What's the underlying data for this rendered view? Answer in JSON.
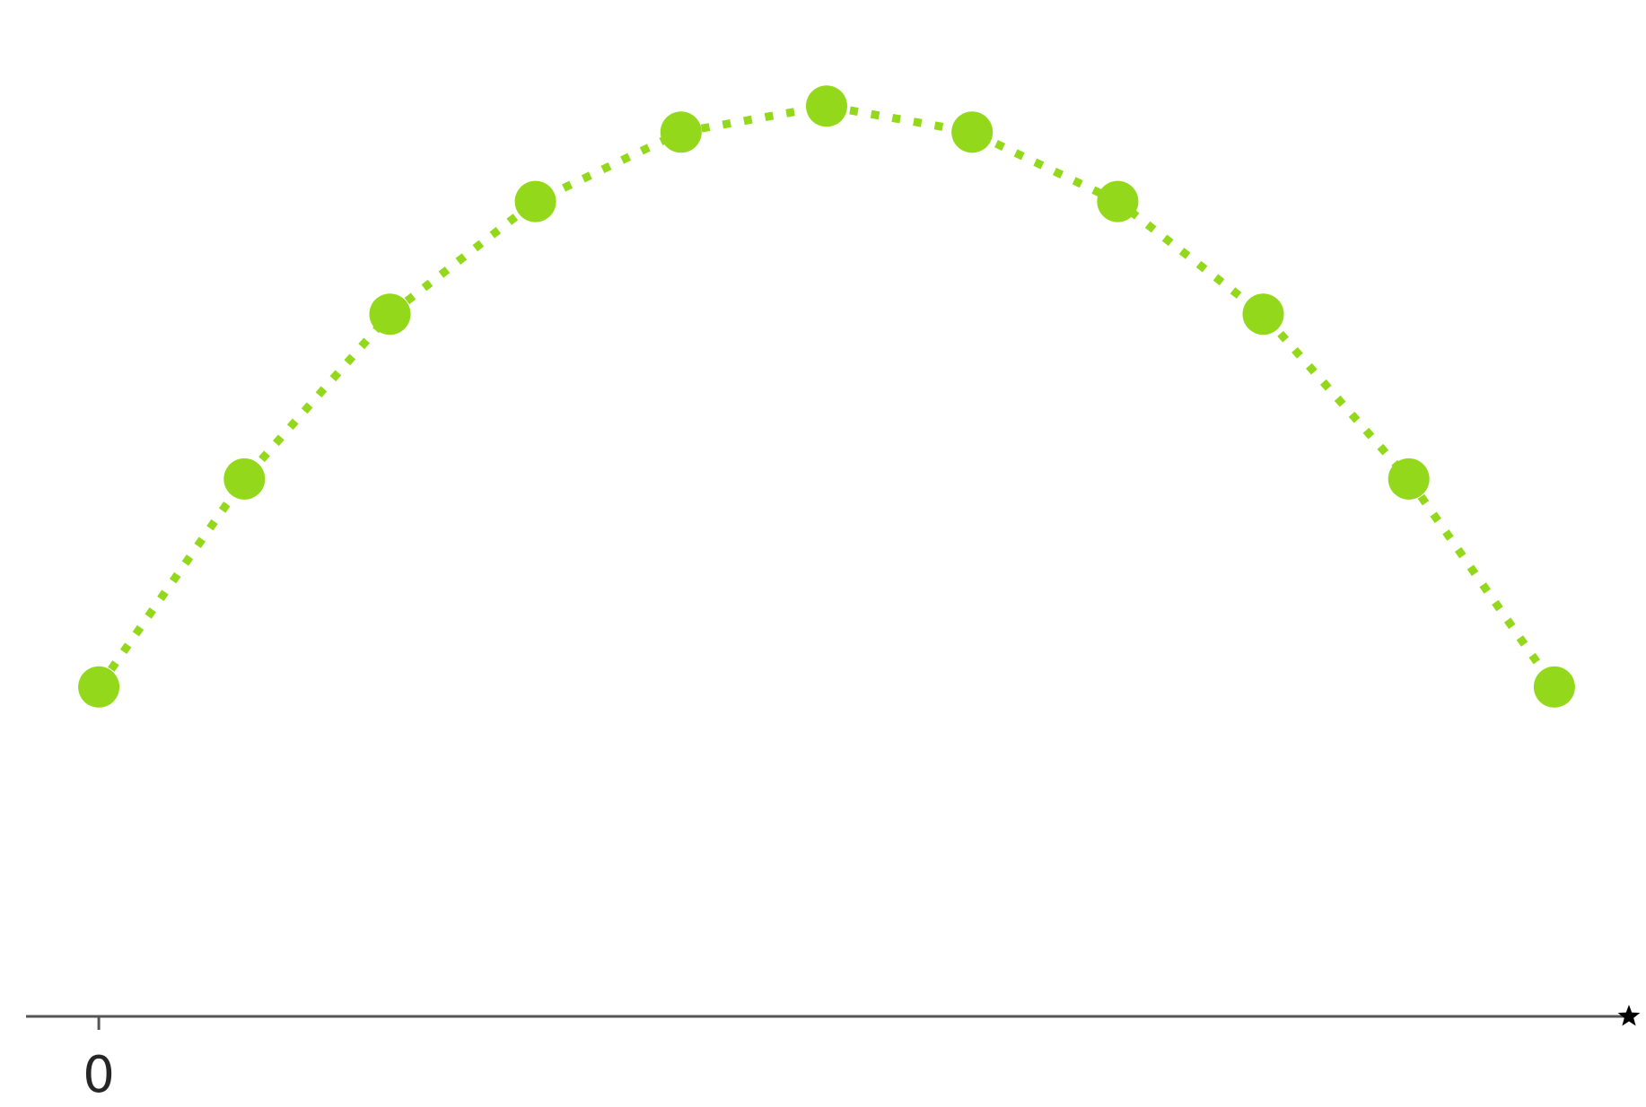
{
  "chart_data": {
    "type": "line",
    "title": "",
    "xlabel": "",
    "ylabel": "",
    "x": [
      0,
      1,
      2,
      3,
      4,
      5,
      6,
      7,
      8,
      9,
      10
    ],
    "series": [
      {
        "values": [
          0.36,
          0.6,
          0.79,
          0.92,
          1.0,
          1.03,
          1.0,
          0.92,
          0.79,
          0.6,
          0.36
        ],
        "line_style": "dotted",
        "marker": "circle"
      }
    ],
    "xlim": [
      -0.5,
      10.5
    ],
    "ylim": [
      -0.02,
      1.08
    ],
    "x_ticks": [
      0
    ],
    "x_tick_labels": [
      "0"
    ],
    "axis_end_marker": "star",
    "grid": false,
    "legend": "none",
    "colors": {
      "series": "#93d81a",
      "axis": "#555555",
      "axis_end_marker": "#000000",
      "tick_label": "#262626"
    }
  }
}
